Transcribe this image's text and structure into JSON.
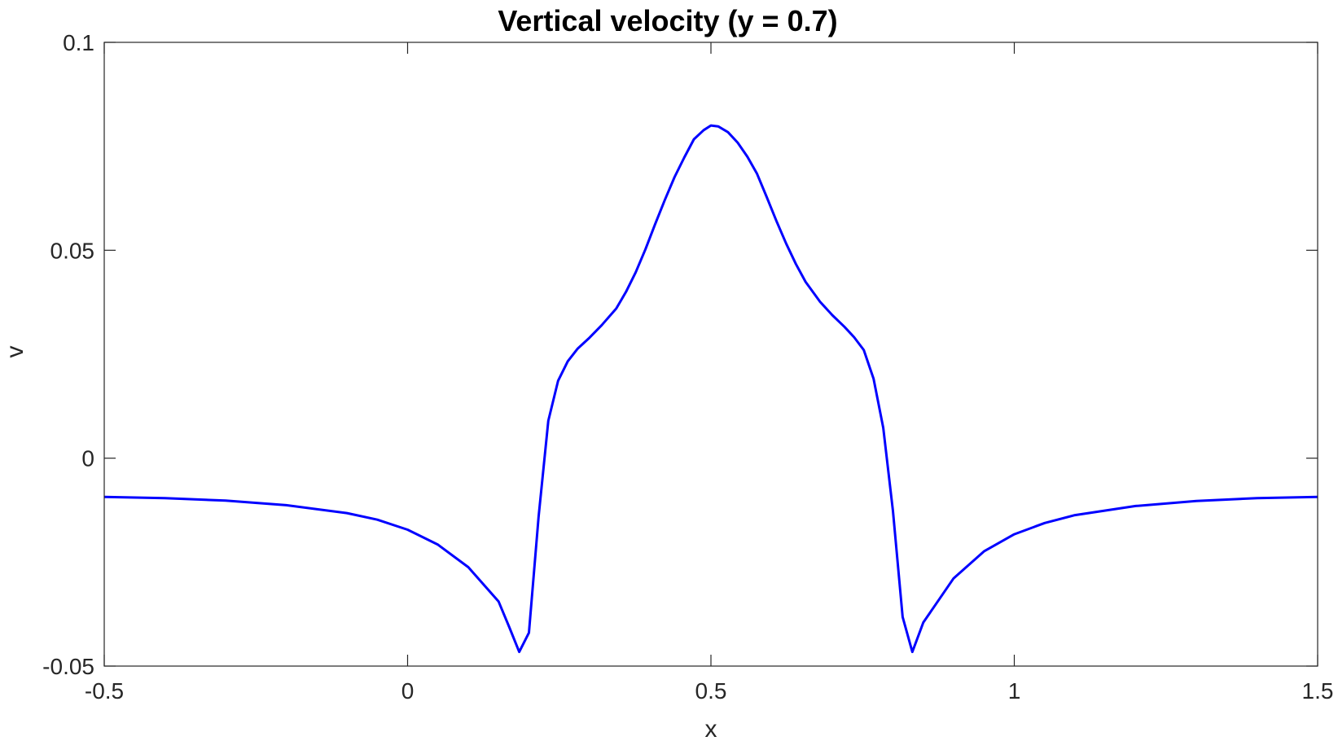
{
  "chart_data": {
    "type": "line",
    "title": "Vertical velocity (y = 0.7)",
    "xlabel": "x",
    "ylabel": "v",
    "xlim": [
      -0.5,
      1.5
    ],
    "ylim": [
      -0.05,
      0.1
    ],
    "xticks": [
      -0.5,
      0,
      0.5,
      1,
      1.5
    ],
    "xtick_labels": [
      "-0.5",
      "0",
      "0.5",
      "1",
      "1.5"
    ],
    "yticks": [
      -0.05,
      0,
      0.05,
      0.1
    ],
    "ytick_labels": [
      "-0.05",
      "0",
      "0.05",
      "0.1"
    ],
    "grid": false,
    "line_color": "#0000ff",
    "series": [
      {
        "x": [
          -0.5,
          -0.4,
          -0.3,
          -0.2,
          -0.1,
          -0.05,
          0,
          0.05,
          0.1,
          0.15,
          0.168,
          0.184,
          0.2,
          0.216,
          0.232,
          0.248,
          0.264,
          0.28,
          0.3,
          0.32,
          0.344,
          0.36,
          0.376,
          0.392,
          0.408,
          0.424,
          0.44,
          0.456,
          0.472,
          0.488,
          0.5,
          0.512,
          0.528,
          0.544,
          0.56,
          0.576,
          0.592,
          0.608,
          0.624,
          0.64,
          0.656,
          0.68,
          0.7,
          0.72,
          0.736,
          0.752,
          0.768,
          0.784,
          0.8,
          0.816,
          0.832,
          0.85,
          0.9,
          0.95,
          1.0,
          1.05,
          1.1,
          1.2,
          1.3,
          1.4,
          1.5
        ],
        "y": [
          -0.0093,
          -0.0096,
          -0.0102,
          -0.0113,
          -0.0132,
          -0.0148,
          -0.0172,
          -0.0208,
          -0.0262,
          -0.0345,
          -0.0408,
          -0.0466,
          -0.042,
          -0.014,
          0.009,
          0.0186,
          0.0233,
          0.0263,
          0.029,
          0.032,
          0.036,
          0.04,
          0.0447,
          0.0502,
          0.0563,
          0.0621,
          0.0676,
          0.0723,
          0.0767,
          0.0789,
          0.08,
          0.0798,
          0.0784,
          0.0759,
          0.0725,
          0.0684,
          0.0628,
          0.057,
          0.0516,
          0.0467,
          0.0424,
          0.0376,
          0.0344,
          0.0316,
          0.0291,
          0.026,
          0.0191,
          0.0073,
          -0.0127,
          -0.0382,
          -0.0466,
          -0.0395,
          -0.0289,
          -0.0224,
          -0.0183,
          -0.0156,
          -0.0137,
          -0.0115,
          -0.0103,
          -0.0096,
          -0.0093
        ]
      }
    ]
  }
}
